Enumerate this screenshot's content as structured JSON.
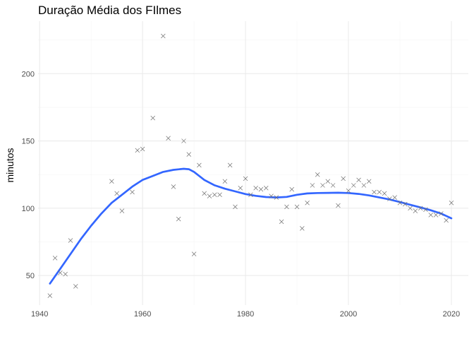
{
  "chart_data": {
    "type": "scatter",
    "title": "Duração Média dos FIlmes",
    "xlabel": "",
    "ylabel": "minutos",
    "xlim": [
      1939.7,
      2023.3
    ],
    "ylim": [
      28,
      239
    ],
    "x_ticks": [
      1940,
      1960,
      1980,
      2000,
      2020
    ],
    "y_ticks": [
      50,
      100,
      150,
      200
    ],
    "x_minor": [
      1950,
      1970,
      1990,
      2010
    ],
    "y_minor": [
      75,
      125,
      175,
      225
    ],
    "grid": true,
    "legend": "none",
    "marker": "x",
    "point_color": "#6e6e6e",
    "smooth_color": "#3366ff",
    "points": [
      [
        1942,
        35
      ],
      [
        1943,
        63
      ],
      [
        1944,
        52
      ],
      [
        1945,
        51
      ],
      [
        1946,
        76
      ],
      [
        1947,
        42
      ],
      [
        1954,
        120
      ],
      [
        1955,
        111
      ],
      [
        1956,
        98
      ],
      [
        1958,
        112
      ],
      [
        1959,
        143
      ],
      [
        1960,
        144
      ],
      [
        1962,
        167
      ],
      [
        1964,
        228
      ],
      [
        1965,
        152
      ],
      [
        1966,
        116
      ],
      [
        1967,
        92
      ],
      [
        1968,
        150
      ],
      [
        1969,
        140
      ],
      [
        1970,
        66
      ],
      [
        1971,
        132
      ],
      [
        1972,
        111
      ],
      [
        1973,
        109
      ],
      [
        1974,
        110
      ],
      [
        1975,
        110
      ],
      [
        1976,
        120
      ],
      [
        1977,
        132
      ],
      [
        1978,
        101
      ],
      [
        1979,
        115
      ],
      [
        1980,
        122
      ],
      [
        1981,
        110
      ],
      [
        1982,
        115
      ],
      [
        1983,
        114
      ],
      [
        1984,
        115
      ],
      [
        1985,
        109
      ],
      [
        1986,
        108
      ],
      [
        1987,
        90
      ],
      [
        1988,
        101
      ],
      [
        1989,
        114
      ],
      [
        1990,
        101
      ],
      [
        1991,
        85
      ],
      [
        1992,
        104
      ],
      [
        1993,
        117
      ],
      [
        1994,
        125
      ],
      [
        1995,
        117
      ],
      [
        1996,
        120
      ],
      [
        1997,
        117
      ],
      [
        1998,
        102
      ],
      [
        1999,
        122
      ],
      [
        2000,
        113
      ],
      [
        2001,
        117
      ],
      [
        2002,
        121
      ],
      [
        2003,
        117
      ],
      [
        2004,
        120
      ],
      [
        2005,
        112
      ],
      [
        2006,
        112
      ],
      [
        2007,
        111
      ],
      [
        2008,
        107
      ],
      [
        2009,
        108
      ],
      [
        2010,
        104
      ],
      [
        2011,
        103
      ],
      [
        2012,
        100
      ],
      [
        2013,
        98
      ],
      [
        2014,
        100
      ],
      [
        2015,
        99
      ],
      [
        2016,
        95
      ],
      [
        2017,
        95
      ],
      [
        2018,
        96
      ],
      [
        2019,
        91
      ],
      [
        2020,
        104
      ]
    ],
    "smooth_line": [
      [
        1942,
        44
      ],
      [
        1944,
        55
      ],
      [
        1946,
        66
      ],
      [
        1948,
        77
      ],
      [
        1950,
        87
      ],
      [
        1952,
        96
      ],
      [
        1954,
        104
      ],
      [
        1956,
        110
      ],
      [
        1958,
        116
      ],
      [
        1960,
        121
      ],
      [
        1962,
        124
      ],
      [
        1964,
        127
      ],
      [
        1966,
        128.5
      ],
      [
        1968,
        129.3
      ],
      [
        1969,
        129
      ],
      [
        1970,
        127
      ],
      [
        1972,
        121
      ],
      [
        1974,
        117
      ],
      [
        1976,
        114.5
      ],
      [
        1978,
        112.5
      ],
      [
        1980,
        110.5
      ],
      [
        1982,
        109.2
      ],
      [
        1984,
        108.3
      ],
      [
        1986,
        108
      ],
      [
        1988,
        108.4
      ],
      [
        1990,
        110
      ],
      [
        1992,
        111
      ],
      [
        1994,
        111.3
      ],
      [
        1996,
        111.4
      ],
      [
        1998,
        111.5
      ],
      [
        2000,
        111.3
      ],
      [
        2002,
        110.6
      ],
      [
        2004,
        109.5
      ],
      [
        2006,
        108
      ],
      [
        2008,
        106.5
      ],
      [
        2010,
        104.6
      ],
      [
        2012,
        102.6
      ],
      [
        2014,
        100.6
      ],
      [
        2016,
        98.5
      ],
      [
        2018,
        96
      ],
      [
        2020,
        92.5
      ]
    ]
  }
}
